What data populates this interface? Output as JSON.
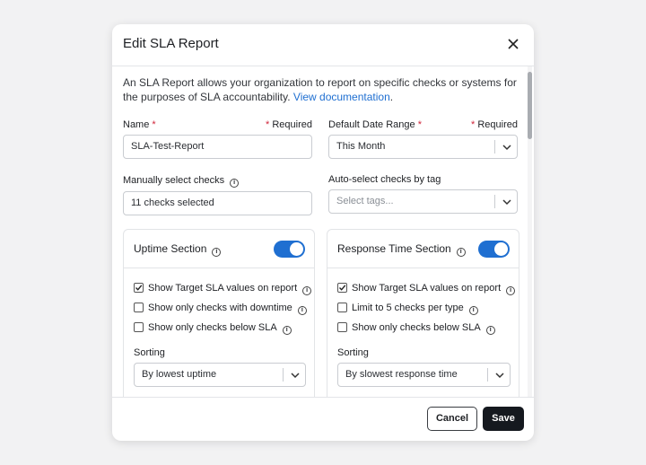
{
  "dialog": {
    "title": "Edit SLA Report",
    "intro": {
      "text": "An SLA Report allows your organization to report on specific checks or systems for the purposes of SLA accountability.",
      "link": "View documentation",
      "end": "."
    },
    "required_mark": "*",
    "required_note": "Required",
    "fields": {
      "name": {
        "label": "Name",
        "value": "SLA-Test-Report"
      },
      "date_range": {
        "label": "Default Date Range",
        "value": "This Month"
      },
      "manual_checks": {
        "label": "Manually select checks",
        "value": "11 checks selected"
      },
      "tag_checks": {
        "label": "Auto-select checks by tag",
        "placeholder": "Select tags..."
      }
    },
    "sections": [
      {
        "title": "Uptime Section",
        "enabled": true,
        "options": [
          {
            "label": "Show Target SLA values on report",
            "checked": true
          },
          {
            "label": "Show only checks with downtime",
            "checked": false
          },
          {
            "label": "Show only checks below SLA",
            "checked": false
          }
        ],
        "sorting_label": "Sorting",
        "sorting": "By lowest uptime"
      },
      {
        "title": "Response Time Section",
        "enabled": true,
        "options": [
          {
            "label": "Show Target SLA values on report",
            "checked": true
          },
          {
            "label": "Limit to 5 checks per type",
            "checked": false
          },
          {
            "label": "Show only checks below SLA",
            "checked": false
          }
        ],
        "sorting_label": "Sorting",
        "sorting": "By slowest response time"
      }
    ],
    "buttons": {
      "cancel": "Cancel",
      "save": "Save"
    }
  }
}
